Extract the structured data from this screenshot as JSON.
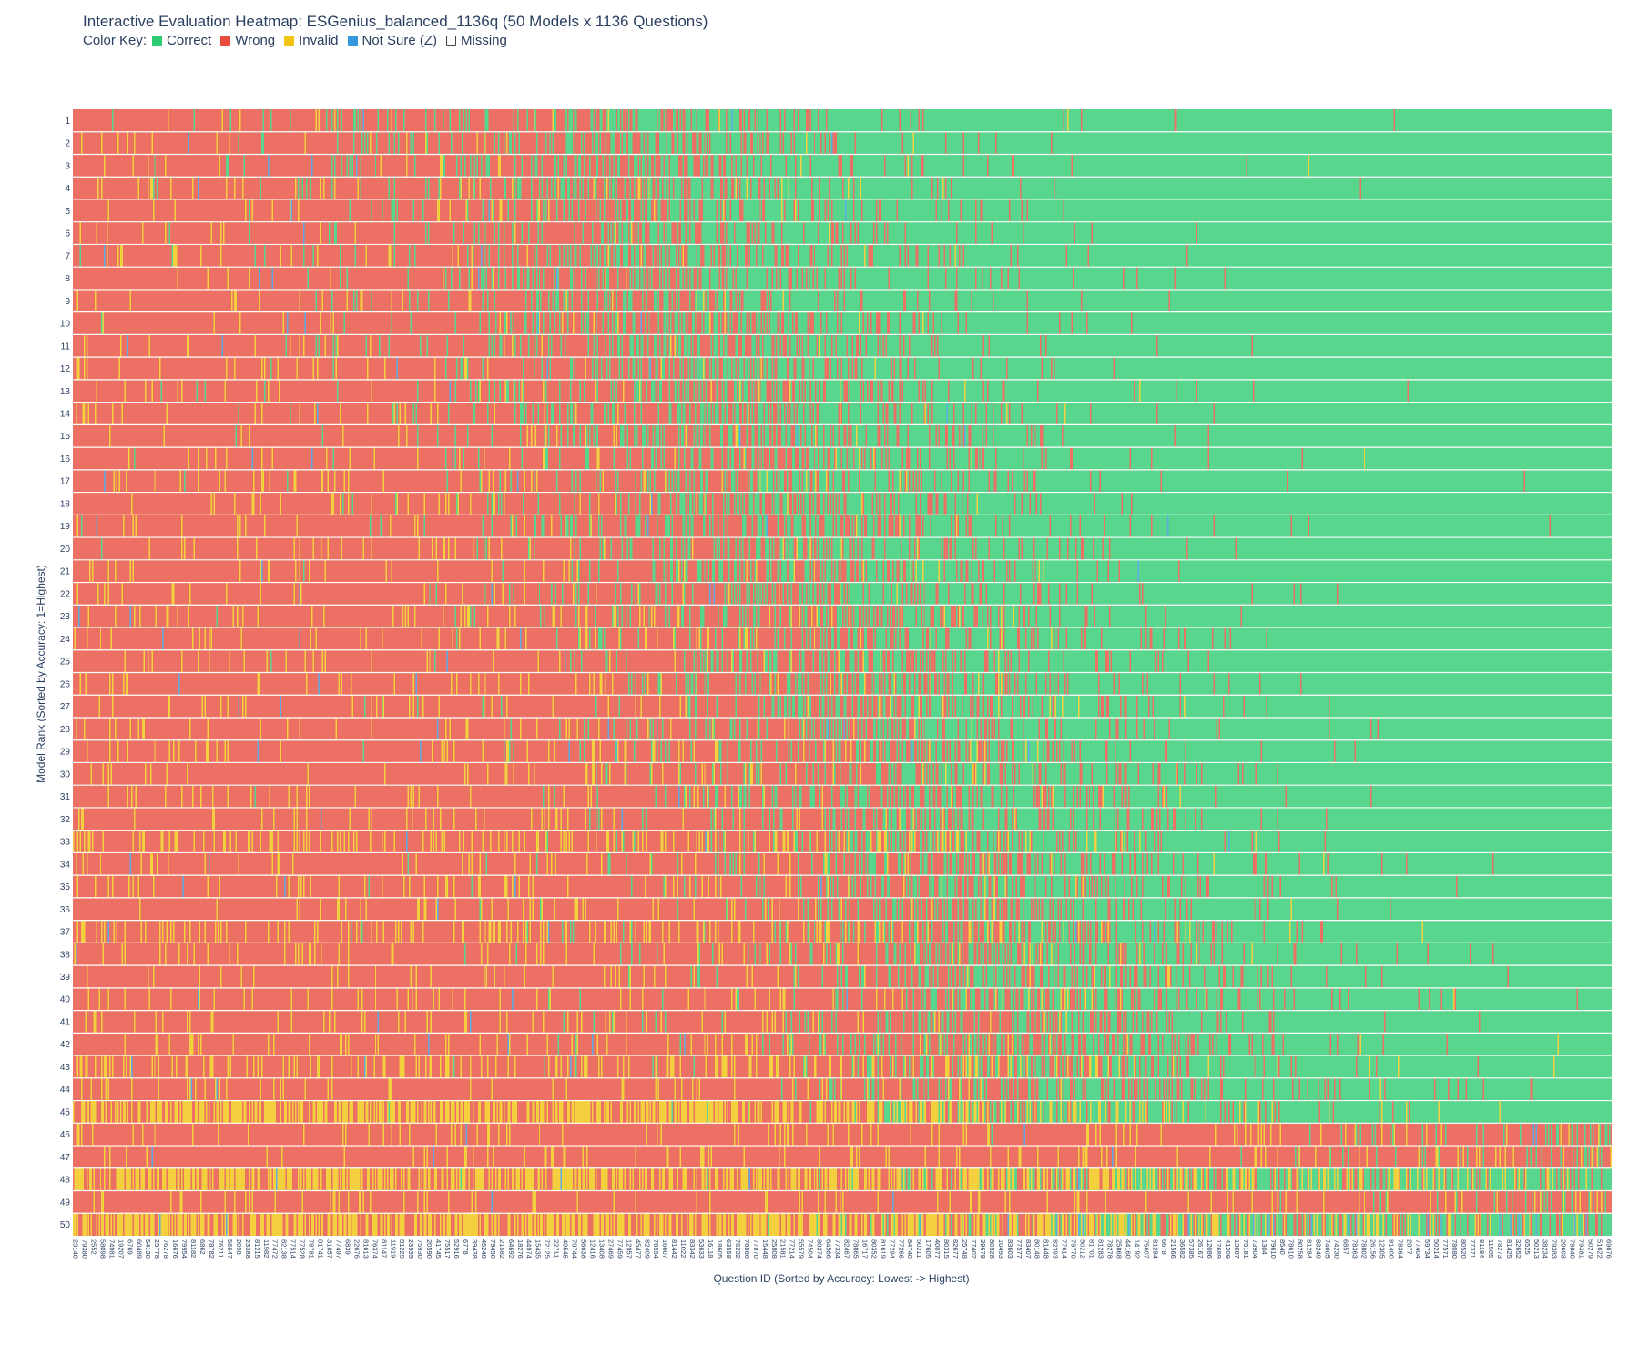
{
  "title": "Interactive Evaluation Heatmap: ESGenius_balanced_1136q (50 Models x 1136 Questions)",
  "legend": {
    "label": "Color Key:",
    "items": [
      {
        "label": "Correct",
        "color": "#2ecc71"
      },
      {
        "label": "Wrong",
        "color": "#e74c3c"
      },
      {
        "label": "Invalid",
        "color": "#f1c40f"
      },
      {
        "label": "Not Sure (Z)",
        "color": "#3498db"
      },
      {
        "label": "Missing",
        "color": "#ffffff"
      }
    ]
  },
  "chart_data": {
    "type": "heatmap",
    "title": "Interactive Evaluation Heatmap: ESGenius_balanced_1136q (50 Models x 1136 Questions)",
    "xlabel": "Question ID (Sorted by Accuracy: Lowest -> Highest)",
    "ylabel": "Model Rank (Sorted by Accuracy: 1=Highest)",
    "n_models": 50,
    "n_questions": 1136,
    "rows": [
      1,
      2,
      3,
      4,
      5,
      6,
      7,
      8,
      9,
      10,
      11,
      12,
      13,
      14,
      15,
      16,
      17,
      18,
      19,
      20,
      21,
      22,
      23,
      24,
      25,
      26,
      27,
      28,
      29,
      30,
      31,
      32,
      33,
      34,
      35,
      36,
      37,
      38,
      39,
      40,
      41,
      42,
      43,
      44,
      45,
      46,
      47,
      48,
      49,
      50
    ],
    "categories_status": [
      "Correct",
      "Wrong",
      "Invalid",
      "Not Sure (Z)",
      "Missing"
    ],
    "colors": {
      "Correct": "#58d68d",
      "Wrong": "#ec7063",
      "Invalid": "#f4d03f",
      "Not Sure (Z)": "#5dade2",
      "Missing": "#ffffff"
    },
    "x_tick_labels": [
      "23140",
      "79380",
      "2552",
      "58098",
      "74981",
      "19207",
      "6769",
      "60489",
      "54130",
      "25778",
      "76278",
      "16676",
      "79954",
      "81182",
      "6862",
      "78782",
      "76211",
      "56647",
      "2098",
      "23388",
      "81215",
      "11982",
      "77472",
      "82138",
      "77514",
      "77528",
      "78781",
      "81741",
      "31857",
      "77497",
      "6839",
      "22676",
      "81613",
      "76374",
      "81147",
      "11919",
      "81229",
      "23939",
      "75930",
      "20590",
      "41745",
      "75517",
      "52916",
      "6778",
      "39438",
      "45248",
      "79450",
      "21582",
      "64692",
      "18276",
      "44974",
      "15435",
      "72125",
      "22711",
      "49545",
      "78744",
      "56638",
      "12416",
      "13408",
      "27469",
      "77459",
      "12957",
      "45477",
      "82409",
      "76554",
      "16607",
      "81442",
      "11022",
      "83342",
      "53633",
      "16118",
      "18605",
      "63558",
      "76232",
      "76866",
      "77870",
      "15448",
      "25808",
      "21581",
      "77214",
      "55579",
      "74504",
      "80374",
      "64566",
      "77334",
      "82467",
      "78865",
      "16717",
      "80352",
      "81619",
      "77294",
      "77266",
      "84740",
      "50211",
      "17605",
      "40077",
      "80315",
      "82677",
      "25748",
      "77402",
      "39678",
      "80528",
      "10493",
      "83603",
      "77577",
      "83407",
      "80148",
      "81448",
      "82393",
      "77614",
      "79770",
      "50212",
      "81701",
      "81283",
      "78278",
      "25868",
      "44160",
      "14192",
      "75607",
      "81284",
      "6678",
      "21566",
      "36582",
      "57385",
      "26167",
      "12086",
      "17689",
      "41209",
      "13087",
      "75181",
      "73904",
      "1304",
      "79610",
      "8540",
      "78610",
      "80258",
      "81284",
      "83249",
      "74605",
      "74230",
      "6857",
      "78363",
      "78802",
      "26156",
      "12305",
      "81400",
      "78364",
      "2877",
      "77404",
      "59734",
      "50214",
      "77571",
      "78080",
      "80520",
      "77371",
      "81184",
      "11505",
      "78273",
      "81425",
      "32652",
      "6525",
      "50213",
      "38234",
      "79383",
      "20603",
      "79840",
      "79381",
      "50279",
      "51622",
      "69676"
    ]
  }
}
